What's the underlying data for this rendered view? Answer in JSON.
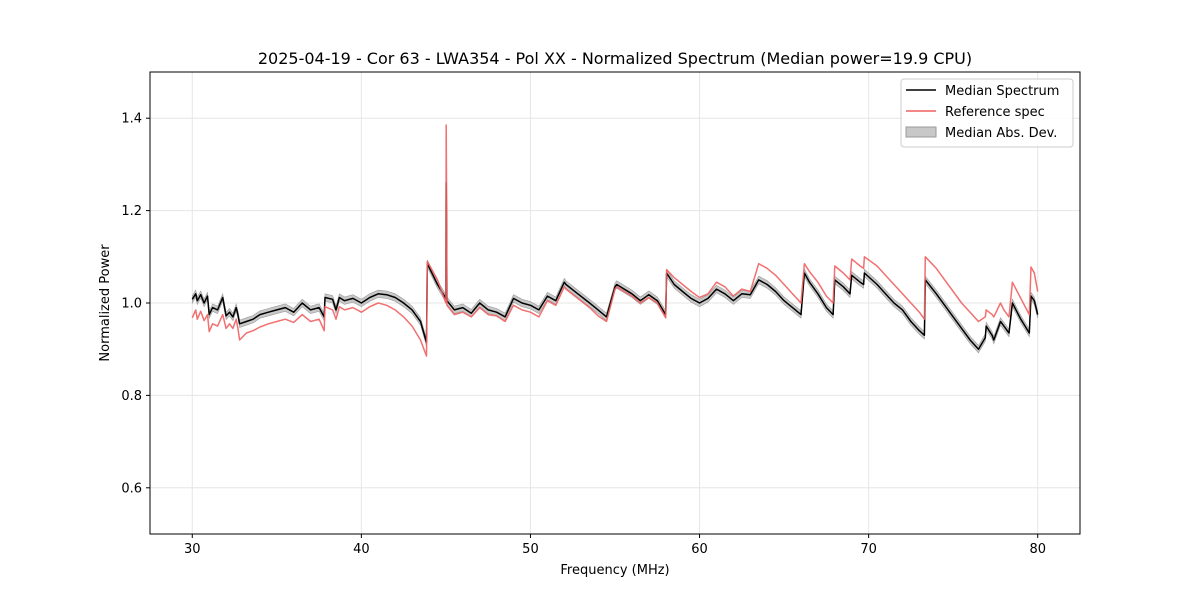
{
  "chart_data": {
    "type": "line",
    "title": "2025-04-19 - Cor 63 - LWA354 - Pol XX - Normalized Spectrum (Median power=19.9 CPU)",
    "xlabel": "Frequency (MHz)",
    "ylabel": "Normalized Power",
    "xlim": [
      27.5,
      82.5
    ],
    "ylim": [
      0.5,
      1.5
    ],
    "xticks": [
      30,
      40,
      50,
      60,
      70,
      80
    ],
    "yticks": [
      0.6,
      0.8,
      1.0,
      1.2,
      1.4
    ],
    "xtick_labels": [
      "30",
      "40",
      "50",
      "60",
      "70",
      "80"
    ],
    "ytick_labels": [
      "0.6",
      "0.8",
      "1.0",
      "1.2",
      "1.4"
    ],
    "grid": true,
    "legend_position": "top-right",
    "legend": [
      "Median Spectrum",
      "Reference spec",
      "Median Abs. Dev."
    ],
    "colors": {
      "median": "#000000",
      "reference": "#f06060",
      "mad": "#c8c8c8",
      "mad_edge": "#9a9a9a"
    },
    "mad_halfwidth": 0.008,
    "series": [
      {
        "name": "Median Spectrum",
        "x": [
          30.0,
          30.2,
          30.3,
          30.5,
          30.7,
          30.9,
          31.0,
          31.2,
          31.5,
          31.8,
          32.0,
          32.2,
          32.4,
          32.6,
          32.7,
          32.8,
          33.2,
          33.6,
          34.0,
          34.5,
          35.0,
          35.5,
          36.0,
          36.5,
          37.0,
          37.5,
          37.8,
          37.85,
          38.3,
          38.5,
          38.7,
          39.0,
          39.5,
          40.0,
          40.5,
          41.0,
          41.5,
          42.0,
          42.5,
          43.0,
          43.5,
          43.85,
          43.9,
          44.5,
          45.0,
          45.02,
          45.04,
          45.06,
          45.5,
          46.0,
          46.5,
          47.0,
          47.5,
          48.0,
          48.5,
          49.0,
          49.5,
          50.0,
          50.5,
          51.0,
          51.5,
          52.0,
          52.1,
          52.8,
          53.5,
          54.0,
          54.5,
          55.0,
          55.1,
          56.0,
          56.5,
          57.0,
          57.5,
          58.0,
          58.05,
          58.5,
          59.0,
          59.5,
          60.0,
          60.5,
          61.0,
          61.5,
          62.0,
          62.5,
          63.0,
          63.5,
          64.0,
          64.5,
          65.0,
          65.5,
          66.0,
          66.2,
          66.5,
          67.0,
          67.5,
          67.9,
          68.0,
          68.5,
          68.9,
          69.0,
          69.5,
          69.7,
          69.75,
          70.5,
          71.0,
          71.5,
          72.0,
          72.5,
          73.0,
          73.3,
          73.35,
          74.0,
          74.5,
          75.0,
          75.5,
          76.0,
          76.5,
          76.9,
          76.95,
          77.3,
          77.4,
          77.8,
          78.0,
          78.3,
          78.5,
          79.0,
          79.5,
          79.6,
          79.8,
          80.0
        ],
        "values": [
          1.008,
          1.02,
          1.005,
          1.018,
          1.0,
          1.015,
          0.975,
          0.99,
          0.985,
          1.012,
          0.972,
          0.98,
          0.97,
          0.99,
          0.975,
          0.955,
          0.96,
          0.965,
          0.975,
          0.98,
          0.985,
          0.99,
          0.98,
          1.0,
          0.985,
          0.99,
          0.97,
          1.012,
          1.008,
          0.985,
          1.012,
          1.005,
          1.01,
          1.0,
          1.012,
          1.02,
          1.018,
          1.012,
          1.0,
          0.985,
          0.96,
          0.915,
          1.085,
          1.04,
          1.01,
          1.26,
          1.17,
          1.005,
          0.985,
          0.99,
          0.978,
          1.0,
          0.985,
          0.98,
          0.97,
          1.01,
          1.0,
          0.995,
          0.985,
          1.015,
          1.005,
          1.045,
          1.04,
          1.02,
          1.0,
          0.985,
          0.97,
          1.035,
          1.04,
          1.02,
          1.005,
          1.018,
          1.005,
          0.975,
          1.065,
          1.04,
          1.025,
          1.01,
          1.0,
          1.01,
          1.03,
          1.02,
          1.005,
          1.02,
          1.018,
          1.05,
          1.04,
          1.025,
          1.005,
          0.99,
          0.975,
          1.065,
          1.045,
          1.02,
          0.99,
          0.975,
          1.05,
          1.035,
          1.02,
          1.06,
          1.045,
          1.04,
          1.065,
          1.04,
          1.02,
          1.0,
          0.985,
          0.96,
          0.94,
          0.93,
          1.05,
          1.02,
          0.995,
          0.97,
          0.945,
          0.92,
          0.9,
          0.925,
          0.95,
          0.93,
          0.92,
          0.96,
          0.95,
          0.935,
          1.0,
          0.965,
          0.935,
          1.015,
          1.005,
          0.975
        ],
        "color": "#000000"
      },
      {
        "name": "Reference spec",
        "x": [
          30.0,
          30.2,
          30.3,
          30.5,
          30.7,
          30.9,
          31.0,
          31.2,
          31.5,
          31.8,
          32.0,
          32.2,
          32.4,
          32.6,
          32.7,
          32.8,
          33.2,
          33.6,
          34.0,
          34.5,
          35.0,
          35.5,
          36.0,
          36.5,
          37.0,
          37.5,
          37.8,
          37.85,
          38.3,
          38.5,
          38.7,
          39.0,
          39.5,
          40.0,
          40.5,
          41.0,
          41.5,
          42.0,
          42.5,
          43.0,
          43.5,
          43.85,
          43.9,
          44.5,
          45.0,
          45.02,
          45.04,
          45.06,
          45.5,
          46.0,
          46.5,
          47.0,
          47.5,
          48.0,
          48.5,
          49.0,
          49.5,
          50.0,
          50.5,
          51.0,
          51.5,
          52.0,
          52.1,
          52.8,
          53.5,
          54.0,
          54.5,
          55.0,
          55.1,
          56.0,
          56.5,
          57.0,
          57.5,
          58.0,
          58.05,
          58.5,
          59.0,
          59.5,
          60.0,
          60.5,
          61.0,
          61.5,
          62.0,
          62.5,
          63.0,
          63.5,
          64.0,
          64.5,
          65.0,
          65.5,
          66.0,
          66.2,
          66.5,
          67.0,
          67.5,
          67.9,
          68.0,
          68.5,
          68.9,
          69.0,
          69.5,
          69.7,
          69.75,
          70.5,
          71.0,
          71.5,
          72.0,
          72.5,
          73.0,
          73.3,
          73.35,
          74.0,
          74.5,
          75.0,
          75.5,
          76.0,
          76.5,
          76.9,
          76.95,
          77.3,
          77.4,
          77.8,
          78.0,
          78.3,
          78.5,
          79.0,
          79.5,
          79.6,
          79.8,
          80.0
        ],
        "values": [
          0.968,
          0.985,
          0.965,
          0.982,
          0.962,
          0.975,
          0.938,
          0.955,
          0.95,
          0.975,
          0.945,
          0.955,
          0.945,
          0.965,
          0.945,
          0.92,
          0.935,
          0.94,
          0.948,
          0.955,
          0.96,
          0.965,
          0.958,
          0.975,
          0.96,
          0.965,
          0.94,
          0.992,
          0.985,
          0.965,
          0.992,
          0.985,
          0.99,
          0.98,
          0.992,
          1.0,
          0.995,
          0.985,
          0.97,
          0.95,
          0.92,
          0.885,
          1.09,
          1.05,
          1.0,
          1.385,
          1.22,
          0.995,
          0.975,
          0.98,
          0.97,
          0.99,
          0.975,
          0.972,
          0.96,
          0.995,
          0.985,
          0.98,
          0.97,
          1.005,
          0.995,
          1.035,
          1.03,
          1.01,
          0.99,
          0.972,
          0.96,
          1.03,
          1.035,
          1.015,
          1.0,
          1.012,
          1.0,
          0.968,
          1.072,
          1.055,
          1.04,
          1.025,
          1.012,
          1.02,
          1.045,
          1.035,
          1.015,
          1.03,
          1.025,
          1.085,
          1.075,
          1.06,
          1.04,
          1.02,
          1.0,
          1.085,
          1.068,
          1.045,
          1.015,
          1.0,
          1.08,
          1.065,
          1.05,
          1.095,
          1.08,
          1.075,
          1.1,
          1.08,
          1.06,
          1.04,
          1.02,
          1.0,
          0.98,
          0.965,
          1.1,
          1.075,
          1.05,
          1.025,
          1.0,
          0.98,
          0.96,
          0.97,
          0.985,
          0.975,
          0.97,
          1.0,
          0.985,
          0.97,
          1.045,
          1.01,
          0.975,
          1.078,
          1.065,
          1.025
        ],
        "color": "#f06060"
      }
    ]
  }
}
